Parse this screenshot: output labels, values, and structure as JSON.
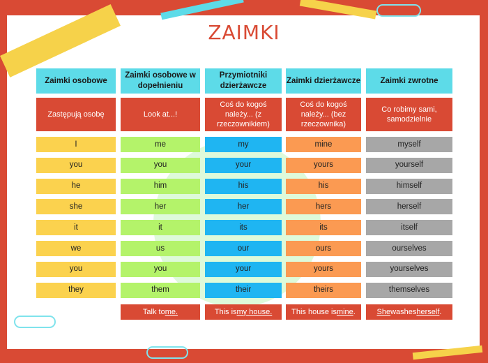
{
  "title": "ZAIMKI",
  "colors": {
    "frame": "#d94a34",
    "header": "#5ddbe8",
    "col0": "#fbd24e",
    "col1": "#b4f36a",
    "col2": "#1fb5f2",
    "col3": "#fb9a52",
    "col4": "#a7a7a7"
  },
  "columns": [
    {
      "header": "Zaimki osobowe",
      "desc": "Zastępują osobę",
      "rows": [
        "I",
        "you",
        "he",
        "she",
        "it",
        "we",
        "you",
        "they"
      ],
      "example": null
    },
    {
      "header": "Zaimki osobowe w dopełnieniu",
      "desc": "Look at...!",
      "rows": [
        "me",
        "you",
        "him",
        "her",
        "it",
        "us",
        "you",
        "them"
      ],
      "example": {
        "pre": "Talk to ",
        "u1": "me.",
        "mid": "",
        "u2": "",
        "post": ""
      }
    },
    {
      "header": "Przymiotniki dzierżawcze",
      "desc": "Coś do kogoś należy... (z rzeczownikiem)",
      "rows": [
        "my",
        "your",
        "his",
        "her",
        "its",
        "our",
        "your",
        "their"
      ],
      "example": {
        "pre": "This is ",
        "u1": "my house.",
        "mid": "",
        "u2": "",
        "post": ""
      }
    },
    {
      "header": "Zaimki dzierżawcze",
      "desc": "Coś do kogoś należy... (bez rzeczownika)",
      "rows": [
        "mine",
        "yours",
        "his",
        "hers",
        "its",
        "ours",
        "yours",
        "theirs"
      ],
      "example": {
        "pre": "This house is ",
        "u1": "mine",
        "mid": ".",
        "u2": "",
        "post": ""
      }
    },
    {
      "header": "Zaimki zwrotne",
      "desc": "Co robimy sami, samodzielnie",
      "rows": [
        "myself",
        "yourself",
        "himself",
        "herself",
        "itself",
        "ourselves",
        "yourselves",
        "themselves"
      ],
      "example": {
        "pre": "",
        "u1": "She",
        "mid": " washes ",
        "u2": "herself",
        "post": "."
      }
    }
  ]
}
